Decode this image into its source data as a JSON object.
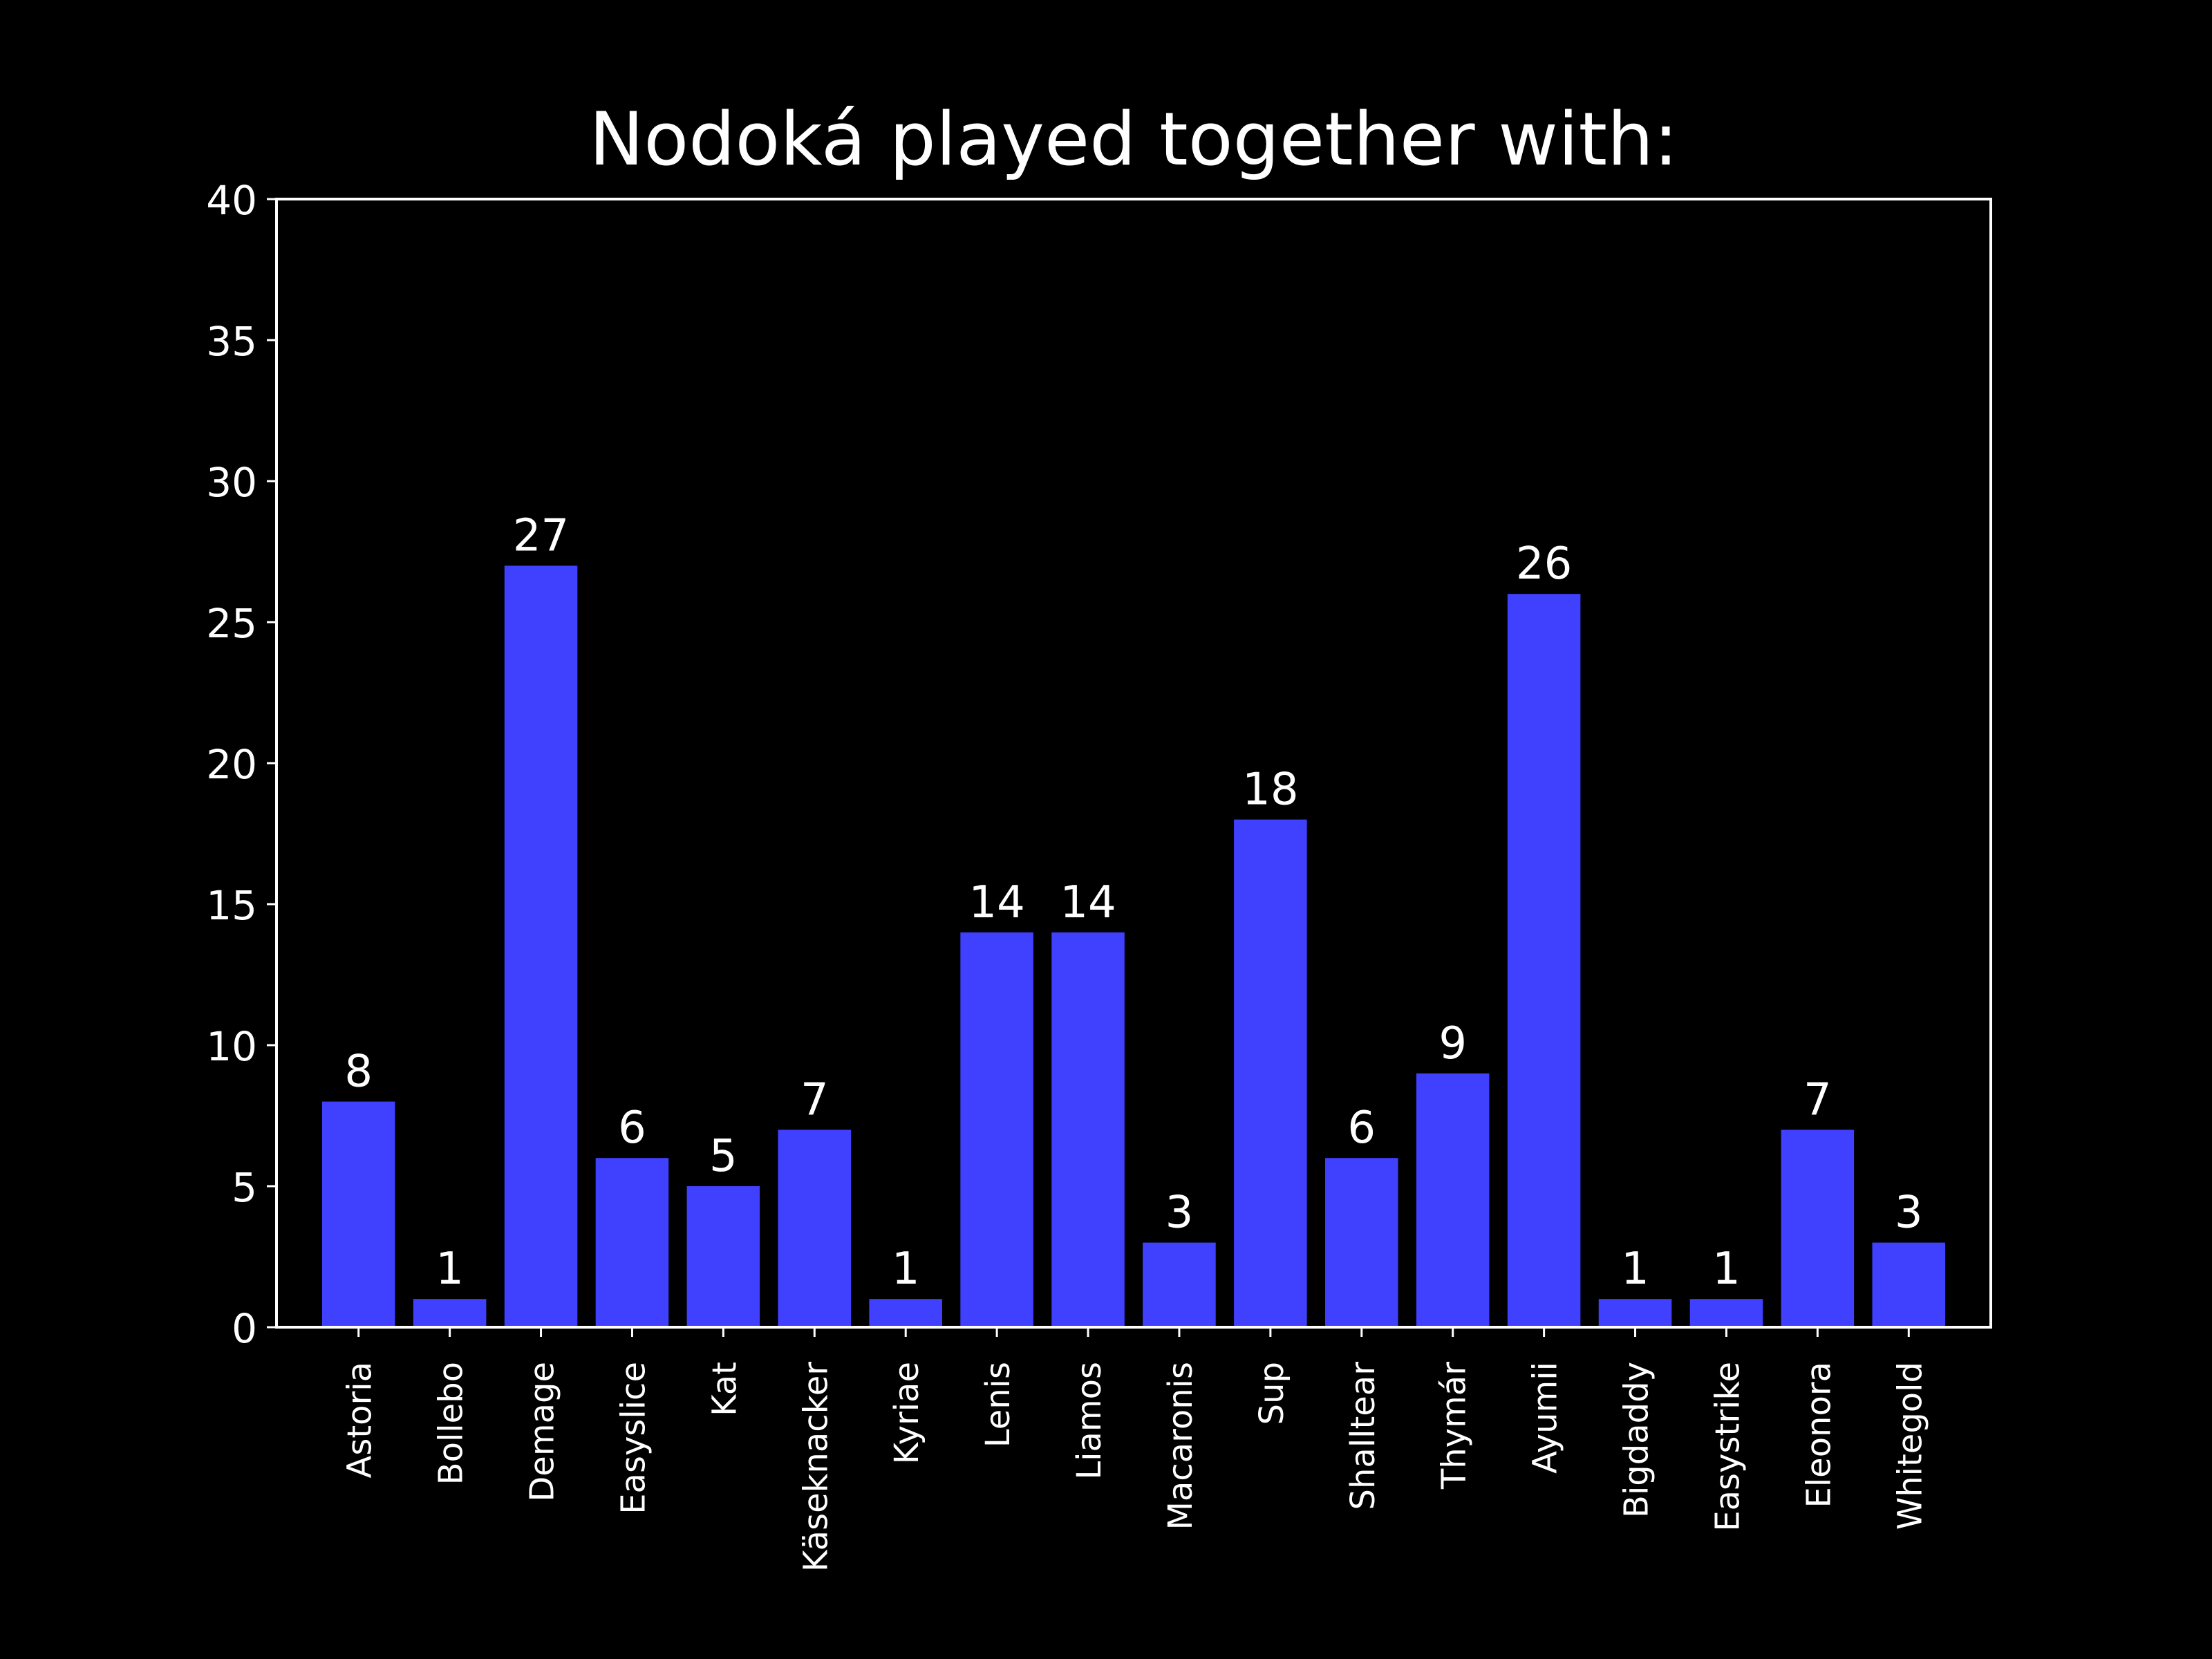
{
  "chart_data": {
    "type": "bar",
    "title": "Nodoká played together with:",
    "xlabel": "",
    "ylabel": "",
    "categories": [
      "Astoria",
      "Bollebo",
      "Demage",
      "Easyslice",
      "Kat",
      "Käseknacker",
      "Kyriae",
      "Lenis",
      "Liamos",
      "Macaronis",
      "Sup",
      "Shalltear",
      "Thymár",
      "Ayumii",
      "Bigdaddy",
      "Easystrike",
      "Eleonora",
      "Whitegold"
    ],
    "values": [
      8,
      1,
      27,
      6,
      5,
      7,
      1,
      14,
      14,
      3,
      18,
      6,
      9,
      26,
      1,
      1,
      7,
      3
    ],
    "ylim": [
      0,
      40
    ],
    "yticks": [
      0,
      5,
      10,
      15,
      20,
      25,
      30,
      35,
      40
    ],
    "grid": false,
    "bar_color": "#4040ff",
    "background_color": "#000000",
    "text_color": "#ffffff"
  }
}
